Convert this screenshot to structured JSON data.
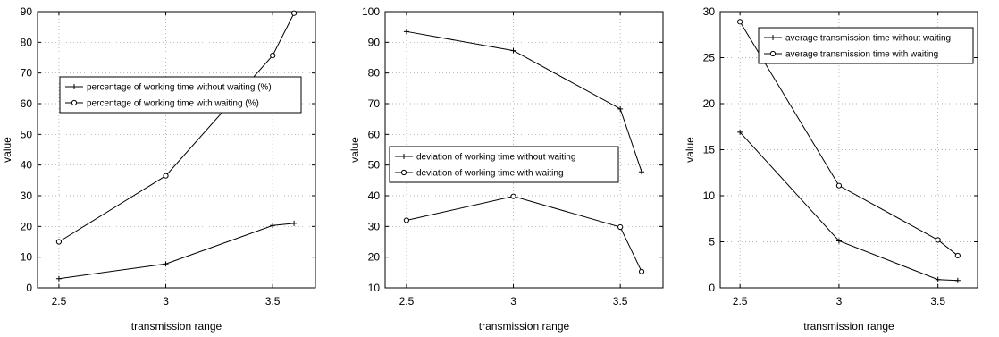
{
  "chart_data": [
    {
      "type": "line",
      "xlabel": "transmission range",
      "ylabel": "value",
      "xlim": [
        2.4,
        3.7
      ],
      "ylim": [
        0,
        90
      ],
      "xticks": [
        2.5,
        3,
        3.5
      ],
      "yticks": [
        0,
        10,
        20,
        30,
        40,
        50,
        60,
        70,
        80,
        90
      ],
      "grid": true,
      "legend_position": "center-left",
      "series": [
        {
          "name": "percentage of working time without waiting (%)",
          "marker": "plus",
          "x": [
            2.5,
            3,
            3.5,
            3.6
          ],
          "values": [
            3,
            7.8,
            20.3,
            21
          ]
        },
        {
          "name": "percentage of working time with waiting (%)",
          "marker": "circle",
          "x": [
            2.5,
            3,
            3.5,
            3.6
          ],
          "values": [
            15,
            36.5,
            75.7,
            89.5
          ]
        }
      ]
    },
    {
      "type": "line",
      "xlabel": "transmission range",
      "ylabel": "value",
      "xlim": [
        2.4,
        3.7
      ],
      "ylim": [
        10,
        100
      ],
      "xticks": [
        2.5,
        3,
        3.5
      ],
      "yticks": [
        10,
        20,
        30,
        40,
        50,
        60,
        70,
        80,
        90,
        100
      ],
      "grid": true,
      "legend_position": "center-left",
      "series": [
        {
          "name": "deviation of working time without waiting",
          "marker": "plus",
          "x": [
            2.5,
            3,
            3.5,
            3.6
          ],
          "values": [
            93.5,
            87.3,
            68.3,
            47.8
          ]
        },
        {
          "name": "deviation of working time with waiting",
          "marker": "circle",
          "x": [
            2.5,
            3,
            3.5,
            3.6
          ],
          "values": [
            32,
            39.8,
            29.8,
            15.3
          ]
        }
      ]
    },
    {
      "type": "line",
      "xlabel": "transmission range",
      "ylabel": "value",
      "xlim": [
        2.4,
        3.7
      ],
      "ylim": [
        0,
        30
      ],
      "xticks": [
        2.5,
        3,
        3.5
      ],
      "yticks": [
        0,
        5,
        10,
        15,
        20,
        25,
        30
      ],
      "grid": true,
      "legend_position": "top-right",
      "series": [
        {
          "name": "average transmission time without waiting",
          "marker": "plus",
          "x": [
            2.5,
            3,
            3.5,
            3.6
          ],
          "values": [
            16.9,
            5.1,
            0.9,
            0.8
          ]
        },
        {
          "name": "average transmission time with waiting",
          "marker": "circle",
          "x": [
            2.5,
            3,
            3.5,
            3.6
          ],
          "values": [
            28.9,
            11.1,
            5.2,
            3.5
          ]
        }
      ]
    }
  ]
}
